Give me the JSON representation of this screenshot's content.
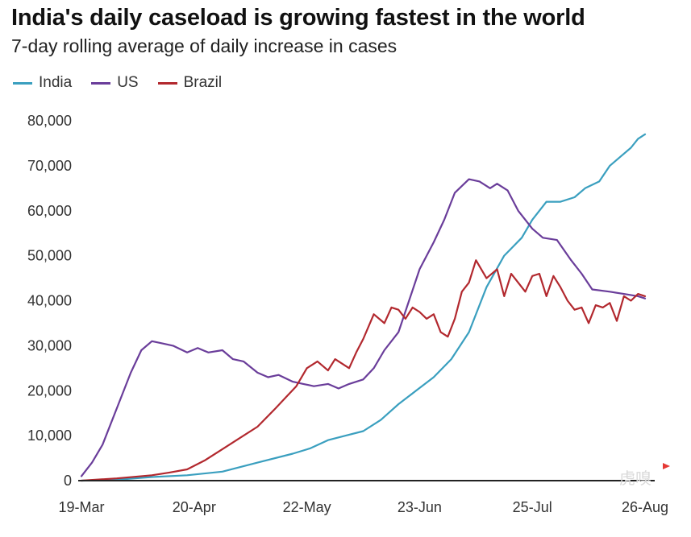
{
  "chart_data": {
    "type": "line",
    "title": "India's daily caseload is growing fastest in the world",
    "subtitle": "7-day rolling average of daily increase in cases",
    "x_ticks": [
      "19-Mar",
      "20-Apr",
      "22-May",
      "23-Jun",
      "25-Jul",
      "26-Aug"
    ],
    "ylim": [
      0,
      80000
    ],
    "y_ticks": [
      "0",
      "10,000",
      "20,000",
      "30,000",
      "40,000",
      "50,000",
      "60,000",
      "70,000",
      "80,000"
    ],
    "grid": false,
    "legend_position": "top-left",
    "series": [
      {
        "name": "India",
        "color": "#3a9fbf",
        "x_day": [
          0,
          10,
          20,
          30,
          40,
          50,
          60,
          65,
          70,
          75,
          80,
          85,
          90,
          95,
          100,
          105,
          110,
          115,
          120,
          125,
          128,
          132,
          136,
          140,
          143,
          147,
          150,
          153,
          156,
          158,
          160
        ],
        "values": [
          0,
          200,
          800,
          1200,
          2000,
          4000,
          6000,
          7200,
          9000,
          10000,
          11000,
          13500,
          17000,
          20000,
          23000,
          27000,
          33000,
          43000,
          50000,
          54000,
          58000,
          62000,
          62000,
          63000,
          65000,
          66500,
          70000,
          72000,
          74000,
          76000,
          77000
        ]
      },
      {
        "name": "US",
        "color": "#6a3d9a",
        "x_day": [
          0,
          3,
          6,
          10,
          14,
          17,
          20,
          23,
          26,
          30,
          33,
          36,
          40,
          43,
          46,
          50,
          53,
          56,
          60,
          63,
          66,
          70,
          73,
          76,
          80,
          83,
          86,
          90,
          93,
          96,
          100,
          103,
          106,
          110,
          113,
          116,
          118,
          121,
          124,
          128,
          131,
          135,
          139,
          142,
          145,
          150,
          154,
          158,
          160
        ],
        "values": [
          1000,
          4000,
          8000,
          16000,
          24000,
          29000,
          31000,
          30500,
          30000,
          28500,
          29500,
          28500,
          29000,
          27000,
          26500,
          24000,
          23000,
          23500,
          22000,
          21500,
          21000,
          21500,
          20500,
          21500,
          22500,
          25000,
          29000,
          33000,
          40000,
          47000,
          53000,
          58000,
          64000,
          67000,
          66500,
          65000,
          66000,
          64500,
          60000,
          56000,
          54000,
          53500,
          49000,
          46000,
          42500,
          42000,
          41500,
          41000,
          40500
        ]
      },
      {
        "name": "Brazil",
        "color": "#b2282e",
        "x_day": [
          0,
          10,
          20,
          25,
          30,
          35,
          40,
          45,
          50,
          55,
          58,
          61,
          64,
          67,
          70,
          72,
          74,
          76,
          78,
          80,
          83,
          86,
          88,
          90,
          92,
          94,
          96,
          98,
          100,
          102,
          104,
          106,
          108,
          110,
          112,
          115,
          118,
          120,
          122,
          124,
          126,
          128,
          130,
          132,
          134,
          136,
          138,
          140,
          142,
          144,
          146,
          148,
          150,
          152,
          154,
          156,
          158,
          160
        ],
        "values": [
          0,
          500,
          1200,
          1800,
          2500,
          4500,
          7000,
          9500,
          12000,
          16000,
          18500,
          21000,
          25000,
          26500,
          24500,
          27000,
          26000,
          25000,
          28500,
          31500,
          37000,
          35000,
          38500,
          38000,
          36000,
          38500,
          37500,
          36000,
          37000,
          33000,
          32000,
          36000,
          42000,
          44000,
          49000,
          45000,
          47000,
          41000,
          46000,
          44000,
          42000,
          45500,
          46000,
          41000,
          45500,
          43000,
          40000,
          38000,
          38500,
          35000,
          39000,
          38500,
          39500,
          35500,
          41000,
          40000,
          41500,
          41000
        ]
      }
    ]
  },
  "watermark": "虎嗅"
}
